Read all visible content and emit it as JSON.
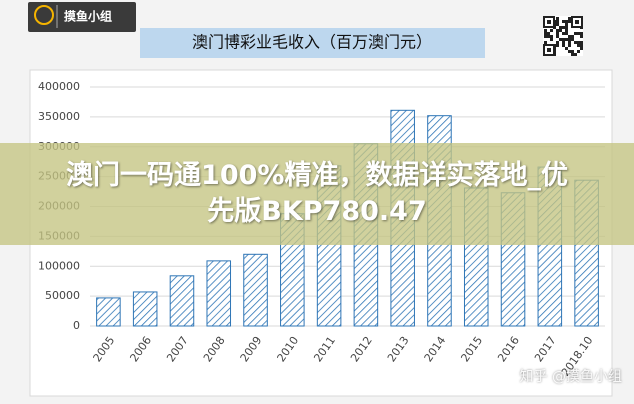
{
  "logo": "摸鱼小组",
  "chart_data": {
    "type": "bar",
    "title": "澳门博彩业毛收入（百万澳门元）",
    "categories": [
      "2005",
      "2006",
      "2007",
      "2008",
      "2009",
      "2010",
      "2011",
      "2012",
      "2013",
      "2014",
      "2015",
      "2016",
      "2017",
      "2018.10"
    ],
    "values": [
      47000,
      57000,
      84000,
      109000,
      120000,
      188000,
      268000,
      305000,
      361000,
      352000,
      231000,
      223000,
      266000,
      244000
    ],
    "color": "#2e75b6",
    "ylim": [
      0,
      400000
    ],
    "yticks": [
      0,
      50000,
      100000,
      150000,
      200000,
      250000,
      300000,
      350000,
      400000
    ],
    "grid": true
  },
  "banner": {
    "lines": [
      "澳门一码通100%精准，数据详实落地_优",
      "先版BKP780.47"
    ]
  },
  "watermark": "知乎 @摸鱼小组"
}
